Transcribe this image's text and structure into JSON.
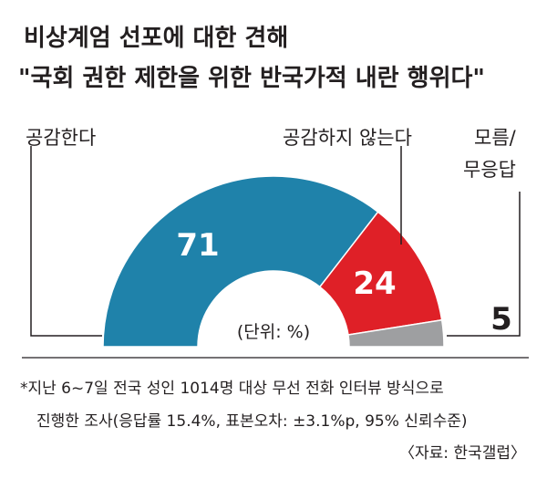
{
  "title": {
    "line1": "비상계엄 선포에 대한 견해",
    "line2": "\"국회 권한 제한을 위한 반국가적 내란 행위다\""
  },
  "chart_data": {
    "type": "pie",
    "subtype": "semi-donut",
    "categories": [
      "공감한다",
      "공감하지 않는다",
      "모름/무응답"
    ],
    "values": [
      71,
      24,
      5
    ],
    "value_labels": [
      "71",
      "24",
      "5"
    ],
    "colors": [
      "#1f82aa",
      "#df2027",
      "#9e9fa1"
    ],
    "unit": "(단위: %)"
  },
  "labels": {
    "agree": "공감한다",
    "disagree": "공감하지 않는다",
    "unknown_line1": "모름/",
    "unknown_line2": "무응답"
  },
  "footnote": {
    "line1": "*지난 6~7일 전국 성인 1014명 대상 무선 전화 인터뷰 방식으로",
    "line2": "진행한 조사(응답률 15.4%, 표본오차: ±3.1%p, 95% 신뢰수준)",
    "source": "〈자료: 한국갤럽〉"
  }
}
